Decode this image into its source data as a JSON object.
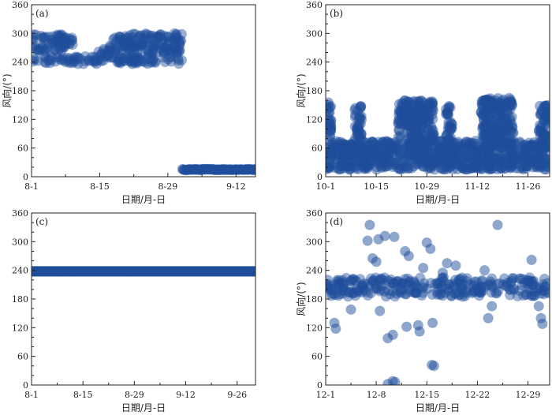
{
  "chart_data": [
    {
      "type": "scatter",
      "panel_label": "(a)",
      "xlabel": "日期/月-日",
      "ylabel": "风向/(°)",
      "xlim": [
        0,
        46
      ],
      "ylim": [
        0,
        360
      ],
      "yticks": [
        "0",
        "60",
        "120",
        "180",
        "240",
        "300",
        "360"
      ],
      "xticks": [
        {
          "label": "8-1",
          "x": 0
        },
        {
          "label": "8-15",
          "x": 14
        },
        {
          "label": "8-29",
          "x": 28
        },
        {
          "label": "9-12",
          "x": 42
        }
      ],
      "color": "#1f4e9c",
      "series": [
        {
          "kind": "band",
          "x_start": 0,
          "x_end": 31,
          "y_low": 236,
          "y_high": 252
        },
        {
          "kind": "band",
          "x_start": 0,
          "x_end": 8.5,
          "y_low": 262,
          "y_high": 298
        },
        {
          "kind": "band",
          "x_start": 16,
          "x_end": 31,
          "y_low": 258,
          "y_high": 300
        },
        {
          "kind": "band",
          "x_start": 13.5,
          "x_end": 16,
          "y_low": 250,
          "y_high": 268
        },
        {
          "kind": "band",
          "x_start": 31,
          "x_end": 46,
          "y_low": 14,
          "y_high": 16
        }
      ]
    },
    {
      "type": "scatter",
      "panel_label": "(b)",
      "xlabel": "日期/月-日",
      "ylabel": "风向/(°)",
      "xlim": [
        0,
        62
      ],
      "ylim": [
        0,
        360
      ],
      "yticks": [
        "0",
        "60",
        "120",
        "180",
        "240",
        "300",
        "360"
      ],
      "xticks": [
        {
          "label": "10-1",
          "x": 0
        },
        {
          "label": "10-15",
          "x": 14
        },
        {
          "label": "10-29",
          "x": 28
        },
        {
          "label": "11-12",
          "x": 42
        },
        {
          "label": "11-26",
          "x": 56
        }
      ],
      "color": "#1f4e9c",
      "series": [
        {
          "kind": "band",
          "x_start": 0,
          "x_end": 62,
          "y_low": 15,
          "y_high": 75
        },
        {
          "kind": "band",
          "x_start": 0,
          "x_end": 1.5,
          "y_low": 75,
          "y_high": 160
        },
        {
          "kind": "band",
          "x_start": 8,
          "x_end": 10,
          "y_low": 75,
          "y_high": 155
        },
        {
          "kind": "band",
          "x_start": 20,
          "x_end": 30,
          "y_low": 75,
          "y_high": 160
        },
        {
          "kind": "band",
          "x_start": 33,
          "x_end": 35,
          "y_low": 75,
          "y_high": 150
        },
        {
          "kind": "band",
          "x_start": 43,
          "x_end": 52,
          "y_low": 75,
          "y_high": 165
        },
        {
          "kind": "band",
          "x_start": 59,
          "x_end": 62,
          "y_low": 75,
          "y_high": 150
        }
      ]
    },
    {
      "type": "scatter",
      "panel_label": "(c)",
      "xlabel": "日期/月-日",
      "ylabel": "",
      "xlim": [
        0,
        61
      ],
      "ylim": [
        0,
        360
      ],
      "yticks": [
        "0",
        "60",
        "120",
        "180",
        "240",
        "300",
        "360"
      ],
      "xticks": [
        {
          "label": "8-1",
          "x": 0
        },
        {
          "label": "8-15",
          "x": 14
        },
        {
          "label": "8-29",
          "x": 28
        },
        {
          "label": "9-12",
          "x": 42
        },
        {
          "label": "9-26",
          "x": 56
        }
      ],
      "color": "#1f4e9c",
      "series": [
        {
          "kind": "band",
          "x_start": 0,
          "x_end": 61,
          "y_low": 238,
          "y_high": 238
        }
      ]
    },
    {
      "type": "scatter",
      "panel_label": "(d)",
      "xlabel": "日期/月-日",
      "ylabel": "风向/(°)",
      "xlim": [
        0,
        31
      ],
      "ylim": [
        0,
        360
      ],
      "yticks": [
        "0",
        "60",
        "120",
        "180",
        "240",
        "300",
        "360"
      ],
      "xticks": [
        {
          "label": "12-1",
          "x": 0
        },
        {
          "label": "12-8",
          "x": 7
        },
        {
          "label": "12-15",
          "x": 14
        },
        {
          "label": "12-22",
          "x": 21
        },
        {
          "label": "12-29",
          "x": 28
        }
      ],
      "color": "#1f4e9c",
      "series": [
        {
          "kind": "band",
          "x_start": 0,
          "x_end": 31,
          "y_low": 185,
          "y_high": 225
        },
        {
          "kind": "points",
          "x": [
            1.2,
            1.4,
            3.5,
            5.8,
            6.1,
            6.5,
            7.0,
            7.3,
            7.5,
            8.2,
            8.6,
            9.3,
            9.5,
            11.0,
            11.5,
            12.8,
            13.0,
            13.5,
            14.0,
            14.5,
            14.8,
            15.0,
            16.2,
            16.8,
            18.0,
            22.0,
            22.5,
            23.0,
            23.8,
            28.5,
            29.5,
            29.8,
            30.0
          ],
          "y": [
            130,
            118,
            158,
            302,
            335,
            265,
            258,
            305,
            155,
            312,
            98,
            105,
            310,
            280,
            270,
            125,
            112,
            245,
            298,
            285,
            130,
            40,
            235,
            255,
            250,
            240,
            140,
            165,
            335,
            262,
            165,
            140,
            128
          ]
        },
        {
          "kind": "points",
          "x": [
            8.6,
            9.3,
            9.6,
            11.2,
            14.7
          ],
          "y": [
            2,
            8,
            6,
            122,
            42
          ]
        }
      ]
    }
  ]
}
